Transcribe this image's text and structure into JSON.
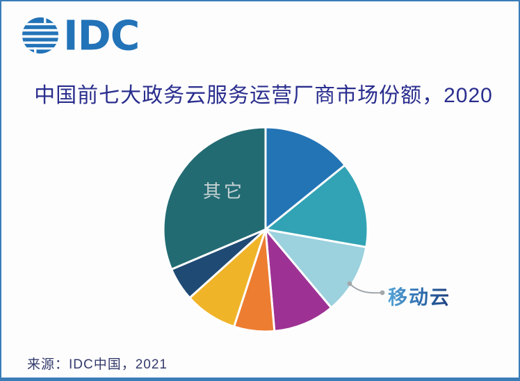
{
  "logo": {
    "text": "IDC"
  },
  "chart_data": {
    "type": "pie",
    "title": "中国前七大政务云服务运营厂商市场份额，2020",
    "legend": "none",
    "start_angle_deg": 0,
    "direction": "clockwise",
    "segments": [
      {
        "label": "",
        "color": "#2374B5",
        "start_deg": 0,
        "end_deg": 51,
        "value_pct": 14.2
      },
      {
        "label": "",
        "color": "#31A3B4",
        "start_deg": 51,
        "end_deg": 100,
        "value_pct": 13.6
      },
      {
        "label": "移动云",
        "color": "#9CD1DE",
        "start_deg": 100,
        "end_deg": 140,
        "value_pct": 11.1
      },
      {
        "label": "",
        "color": "#9E3294",
        "start_deg": 140,
        "end_deg": 175,
        "value_pct": 9.7
      },
      {
        "label": "",
        "color": "#ED7D31",
        "start_deg": 175,
        "end_deg": 198,
        "value_pct": 6.4
      },
      {
        "label": "",
        "color": "#F0B429",
        "start_deg": 198,
        "end_deg": 228,
        "value_pct": 8.3
      },
      {
        "label": "",
        "color": "#1F4A74",
        "start_deg": 228,
        "end_deg": 247,
        "value_pct": 5.3
      },
      {
        "label": "其它",
        "color": "#236B73",
        "start_deg": 247,
        "end_deg": 360,
        "value_pct": 31.4
      }
    ],
    "inside_label": {
      "text": "其它"
    },
    "callout": {
      "text": "移动云"
    }
  },
  "footer": {
    "source": "来源：IDC中国，2021"
  },
  "colors": {
    "border": "#3B7DB8",
    "logo_blue": "#2273B8",
    "title_text": "#2A2E8E",
    "source_text": "#333A6B",
    "inside_label_text": "#C7D3D5",
    "callout_line": "#A3A7AB",
    "slice_gap": "#FFFFFF"
  }
}
